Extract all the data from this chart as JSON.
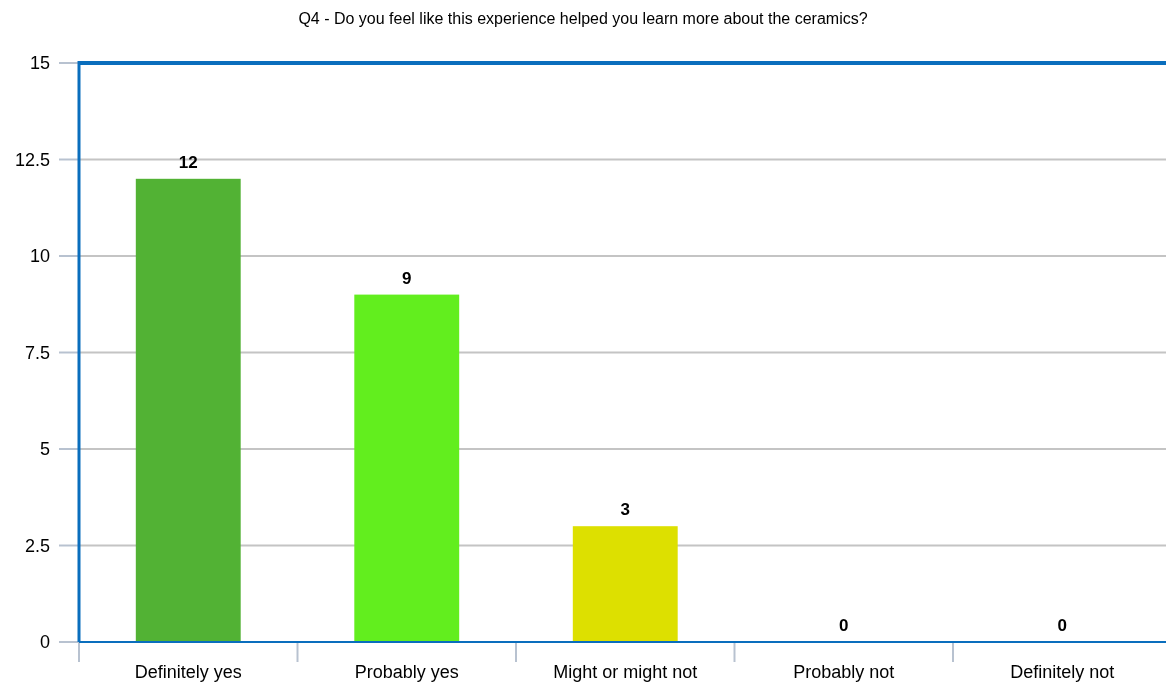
{
  "chart_data": {
    "type": "bar",
    "title": "Q4 - Do you feel like this experience helped you learn more about the ceramics?",
    "categories": [
      "Definitely yes",
      "Probably yes",
      "Might or might not",
      "Probably not",
      "Definitely not"
    ],
    "values": [
      12,
      9,
      3,
      0,
      0
    ],
    "colors": [
      "#52b234",
      "#62ee1e",
      "#dde000",
      "#52b234",
      "#52b234"
    ],
    "ylim": [
      0,
      15
    ],
    "yticks": [
      0,
      2.5,
      5,
      7.5,
      10,
      12.5,
      15
    ],
    "grid": "y",
    "data_labels": true
  }
}
